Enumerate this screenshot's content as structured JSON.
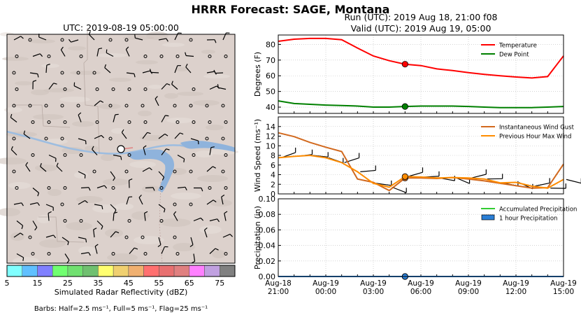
{
  "title": "HRRR Forecast: SAGE, Montana",
  "map": {
    "title": "UTC: 2019-08-19 05:00:00",
    "colorbar": {
      "label": "Simulated Radar Reflectivity (dBZ)",
      "ticks": [
        "5",
        "15",
        "25",
        "35",
        "45",
        "55",
        "65",
        "75"
      ],
      "colors": [
        "#80ffff",
        "#60c0ff",
        "#8080ff",
        "#70ff70",
        "#70e070",
        "#70c070",
        "#ffff70",
        "#f0d070",
        "#f0b070",
        "#ff7070",
        "#e87070",
        "#e08080",
        "#ff80ff",
        "#c0a0e0",
        "#808080"
      ]
    },
    "barb_note": "Barbs: Half=2.5 ms⁻¹, Full=5 ms⁻¹, Flag=25 ms⁻¹"
  },
  "header": {
    "run": "Run (UTC): 2019 Aug 18, 21:00 f08",
    "valid": "Valid (UTC): 2019 Aug 19, 05:00"
  },
  "chart_data": [
    {
      "type": "line",
      "ylabel": "Degrees (F)",
      "ylim": [
        36,
        86
      ],
      "yticks": [
        "40",
        "50",
        "60",
        "70",
        "80"
      ],
      "grid": true,
      "legend_position": "top-right",
      "x": [
        0,
        1,
        2,
        3,
        4,
        5,
        6,
        7,
        8,
        9,
        10,
        11,
        12,
        13,
        14,
        15,
        16,
        17,
        18
      ],
      "series": [
        {
          "name": "Temperature",
          "color": "#ff0000",
          "values": [
            82,
            83.3,
            83.8,
            83.8,
            83,
            77.7,
            72.6,
            69.6,
            67.4,
            66.5,
            64.4,
            63.3,
            62,
            60.9,
            60,
            59.2,
            58.6,
            59.5,
            72.7
          ]
        },
        {
          "name": "Dew Point",
          "color": "#008000",
          "values": [
            44,
            42.3,
            41.8,
            41.3,
            41,
            40.7,
            40,
            40,
            40.4,
            40.7,
            40.7,
            40.7,
            40.4,
            40,
            39.7,
            39.7,
            39.7,
            40,
            40.4
          ]
        }
      ],
      "current_index": 8
    },
    {
      "type": "line",
      "ylabel": "Wind Speed (ms⁻¹)",
      "ylim": [
        0,
        16
      ],
      "yticks": [
        "0",
        "2",
        "4",
        "6",
        "8",
        "10",
        "12",
        "14"
      ],
      "grid": true,
      "legend_position": "top-right",
      "x": [
        0,
        1,
        2,
        3,
        4,
        5,
        6,
        7,
        8,
        9,
        10,
        11,
        12,
        13,
        14,
        15,
        16,
        17,
        18
      ],
      "series": [
        {
          "name": "Instantaneous Wind Gust",
          "color": "#d2691e",
          "values": [
            12.7,
            11.9,
            10.7,
            9.7,
            8.8,
            3.1,
            2.4,
            0.7,
            3.3,
            3.3,
            3.2,
            3.4,
            3.1,
            2.7,
            2.2,
            1.7,
            1.2,
            1.3,
            6.2
          ]
        },
        {
          "name": "Previous Hour Max Wind",
          "color": "#ff8c00",
          "values": [
            7.5,
            7.8,
            8,
            7.5,
            6.5,
            4.6,
            2.2,
            1.4,
            3.6,
            3.5,
            3.3,
            3.4,
            3.3,
            3.1,
            2.3,
            2.4,
            1.6,
            1.2,
            3.0
          ]
        }
      ],
      "current_index": 8
    },
    {
      "type": "area",
      "ylabel": "Precipitation (in)",
      "ylim": [
        0,
        0.1
      ],
      "yticks": [
        "0.00",
        "0.02",
        "0.04",
        "0.06",
        "0.08",
        "0.10"
      ],
      "grid": true,
      "legend_position": "top-right",
      "x": [
        0,
        1,
        2,
        3,
        4,
        5,
        6,
        7,
        8,
        9,
        10,
        11,
        12,
        13,
        14,
        15,
        16,
        17,
        18
      ],
      "series": [
        {
          "name": "Accumulated Precipitation",
          "color": "#33cc33",
          "values": [
            0,
            0,
            0,
            0,
            0,
            0,
            0,
            0,
            0,
            0,
            0,
            0,
            0,
            0,
            0,
            0,
            0,
            0,
            0
          ]
        },
        {
          "name": "1 hour Precipitation",
          "color": "#2a7fd6",
          "values": [
            0,
            0,
            0,
            0,
            0,
            0,
            0,
            0,
            0,
            0,
            0,
            0,
            0,
            0,
            0,
            0,
            0,
            0,
            0
          ]
        }
      ],
      "xtick_labels": [
        [
          "Aug-18",
          "21:00"
        ],
        [
          "Aug-19",
          "00:00"
        ],
        [
          "Aug-19",
          "03:00"
        ],
        [
          "Aug-19",
          "06:00"
        ],
        [
          "Aug-19",
          "09:00"
        ],
        [
          "Aug-19",
          "12:00"
        ],
        [
          "Aug-19",
          "15:00"
        ]
      ],
      "current_index": 8
    }
  ]
}
